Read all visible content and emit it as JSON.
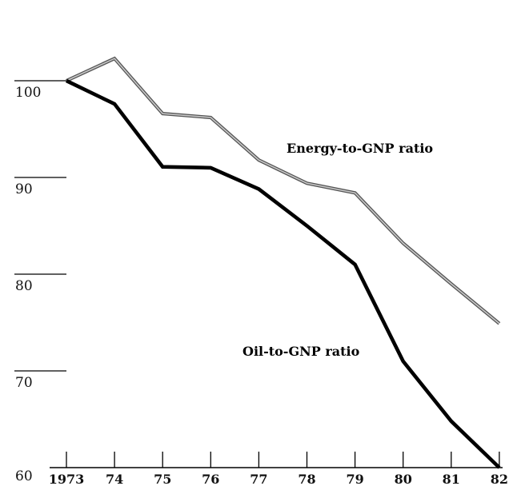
{
  "chart_data": {
    "type": "line",
    "title": "",
    "xlabel": "",
    "ylabel": "",
    "x": [
      1973,
      1974,
      1975,
      1976,
      1977,
      1978,
      1979,
      1980,
      1981,
      1982
    ],
    "x_tick_labels": [
      "1973",
      "74",
      "75",
      "76",
      "77",
      "78",
      "79",
      "80",
      "81",
      "82"
    ],
    "y_tick_labels": [
      "60",
      "70",
      "80",
      "90",
      "100"
    ],
    "y_ticks": [
      60,
      70,
      80,
      90,
      100
    ],
    "ylim": [
      60,
      103
    ],
    "series": [
      {
        "name": "Energy-to-GNP ratio",
        "color": "#8a8a8a",
        "x": [
          1973,
          1974,
          1975,
          1976,
          1977,
          1978,
          1979,
          1980,
          1981,
          1982
        ],
        "values": [
          100,
          102.3,
          96.6,
          96.2,
          91.8,
          89.4,
          88.4,
          83.2,
          79.0,
          74.9
        ]
      },
      {
        "name": "Oil-to-GNP ratio",
        "color": "#000000",
        "x": [
          1973,
          1974,
          1975,
          1976,
          1977,
          1978,
          1978.5,
          1979,
          1980,
          1981,
          1982
        ],
        "values": [
          100,
          97.6,
          91.1,
          91.0,
          88.8,
          85.0,
          83.0,
          81.0,
          71.0,
          64.8,
          60.0
        ]
      }
    ],
    "grid": false,
    "legend": "inline labels"
  }
}
